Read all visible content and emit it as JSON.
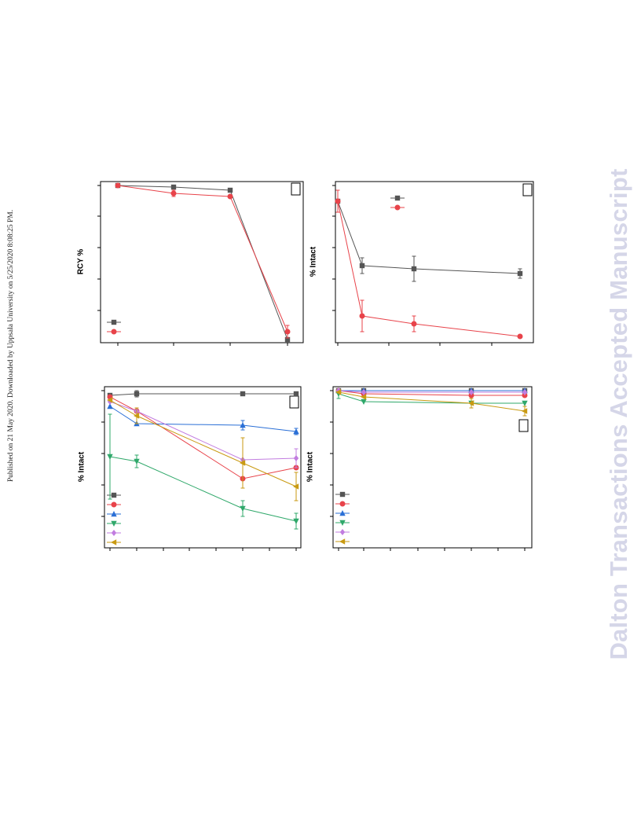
{
  "page": {
    "published_note": "Published on 21 May 2020. Downloaded by Uppsala University on 5/25/2020 8:08:25 PM.",
    "watermark": "Dalton Transactions Accepted Manuscript"
  },
  "colors": {
    "black": "#555555",
    "red": "#e8434a",
    "blue": "#2a6fd6",
    "green": "#2fa86a",
    "violet": "#c27de0",
    "gold": "#c99a12"
  },
  "chart_data": [
    {
      "type": "line",
      "panel": "top-left",
      "ylabel": "RCY %",
      "x": [
        0,
        1,
        2,
        3
      ],
      "ylim": [
        0,
        100
      ],
      "legend_placement": "bottom-left",
      "series": [
        {
          "marker": "square",
          "color": "black",
          "values": [
            100,
            99,
            97,
            2
          ],
          "errors": [
            0,
            0,
            0,
            0
          ]
        },
        {
          "marker": "circle",
          "color": "red",
          "values": [
            100,
            95,
            93,
            7
          ],
          "errors": [
            0,
            2,
            1,
            4
          ]
        }
      ]
    },
    {
      "type": "line",
      "panel": "top-right",
      "ylabel": "% Intact",
      "x": [
        0,
        1,
        3,
        7
      ],
      "ylim": [
        0,
        100
      ],
      "legend_placement": "top-left",
      "series": [
        {
          "marker": "square",
          "color": "black",
          "values": [
            90,
            49,
            47,
            44
          ],
          "errors": [
            0,
            5,
            8,
            3
          ]
        },
        {
          "marker": "circle",
          "color": "red",
          "values": [
            90,
            17,
            12,
            4
          ],
          "errors": [
            7,
            10,
            5,
            0
          ]
        }
      ]
    },
    {
      "type": "line",
      "panel": "bottom-left",
      "ylabel": "% Intact",
      "x": [
        0,
        1,
        5,
        7
      ],
      "ylim": [
        0,
        100
      ],
      "legend_placement": "bottom-left",
      "series": [
        {
          "marker": "square",
          "color": "black",
          "values": [
            97,
            98,
            98,
            98
          ],
          "errors": [
            0,
            2,
            0,
            0
          ]
        },
        {
          "marker": "circle",
          "color": "red",
          "values": [
            96,
            87,
            44,
            51
          ],
          "errors": [
            0,
            0,
            0,
            0
          ]
        },
        {
          "marker": "triangle-up",
          "color": "blue",
          "values": [
            90,
            79,
            78,
            74
          ],
          "errors": [
            0,
            0,
            3,
            2
          ]
        },
        {
          "marker": "triangle-down",
          "color": "green",
          "values": [
            58,
            55,
            25,
            17
          ],
          "errors": [
            27,
            4,
            5,
            5
          ]
        },
        {
          "marker": "diamond",
          "color": "violet",
          "values": [
            93,
            87,
            56,
            57
          ],
          "errors": [
            0,
            0,
            0,
            6
          ]
        },
        {
          "marker": "triangle-left",
          "color": "gold",
          "values": [
            94,
            84,
            54,
            39
          ],
          "errors": [
            0,
            5,
            16,
            9
          ]
        }
      ]
    },
    {
      "type": "line",
      "panel": "bottom-right",
      "ylabel": "% Intact",
      "x": [
        0,
        1,
        5,
        7
      ],
      "ylim": [
        0,
        100
      ],
      "legend_placement": "bottom-left",
      "series": [
        {
          "marker": "square",
          "color": "black",
          "values": [
            100,
            100,
            100,
            100
          ],
          "errors": [
            0,
            0,
            0,
            0
          ]
        },
        {
          "marker": "circle",
          "color": "red",
          "values": [
            100,
            98,
            97,
            97
          ],
          "errors": [
            0,
            0,
            0,
            0
          ]
        },
        {
          "marker": "triangle-up",
          "color": "blue",
          "values": [
            100,
            100,
            100,
            100
          ],
          "errors": [
            0,
            0,
            0,
            0
          ]
        },
        {
          "marker": "triangle-down",
          "color": "green",
          "values": [
            98,
            93,
            92,
            92
          ],
          "errors": [
            3,
            0,
            0,
            0
          ]
        },
        {
          "marker": "diamond",
          "color": "violet",
          "values": [
            100,
            99,
            99,
            99
          ],
          "errors": [
            0,
            0,
            0,
            0
          ]
        },
        {
          "marker": "triangle-left",
          "color": "gold",
          "values": [
            99,
            96,
            92,
            87
          ],
          "errors": [
            0,
            0,
            3,
            3
          ]
        }
      ]
    }
  ]
}
